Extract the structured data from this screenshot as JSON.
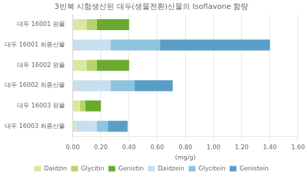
{
  "chart_data": {
    "type": "bar",
    "orientation": "horizontal",
    "stacked": true,
    "title": "3반복 시험생산된 대두(생물전환)산물의 Isoflavone 함량",
    "xlabel": "(mg/g)",
    "categories": [
      "대두 16001 원물",
      "대두 16001 최종산물",
      "대두 16002 원물",
      "대두 16002 최종산물",
      "대두 16003 원물",
      "대두 16003 최종산물"
    ],
    "series": [
      {
        "name": "Daidzin",
        "color": "#d9e8a0",
        "values": [
          0.1,
          0.0,
          0.1,
          0.0,
          0.05,
          0.02
        ]
      },
      {
        "name": "Glycitin",
        "color": "#b5d46e",
        "values": [
          0.07,
          0.0,
          0.07,
          0.0,
          0.04,
          0.0
        ]
      },
      {
        "name": "Genistin",
        "color": "#6aaa2e",
        "values": [
          0.23,
          0.0,
          0.23,
          0.0,
          0.11,
          0.0
        ]
      },
      {
        "name": "Daidzein",
        "color": "#c8dff0",
        "values": [
          0.0,
          0.27,
          0.0,
          0.27,
          0.0,
          0.15
        ]
      },
      {
        "name": "Glycitein",
        "color": "#8ec4de",
        "values": [
          0.0,
          0.35,
          0.0,
          0.17,
          0.0,
          0.08
        ]
      },
      {
        "name": "Genistein",
        "color": "#5a9ec8",
        "values": [
          0.0,
          0.78,
          0.0,
          0.27,
          0.0,
          0.14
        ]
      }
    ],
    "xlim": [
      0.0,
      1.6
    ],
    "xticks": [
      {
        "value": 0.0,
        "label": "0.00"
      },
      {
        "value": 0.2,
        "label": "0.20"
      },
      {
        "value": 0.4,
        "label": "0.40"
      },
      {
        "value": 0.6,
        "label": "0.60"
      },
      {
        "value": 0.8,
        "label": "0.80"
      },
      {
        "value": 1.0,
        "label": "1.00"
      },
      {
        "value": 1.2,
        "label": "1.20"
      },
      {
        "value": 1.4,
        "label": "1.40"
      },
      {
        "value": 1.6,
        "label": "1.60"
      }
    ],
    "grid": true,
    "legend": "bottom"
  }
}
